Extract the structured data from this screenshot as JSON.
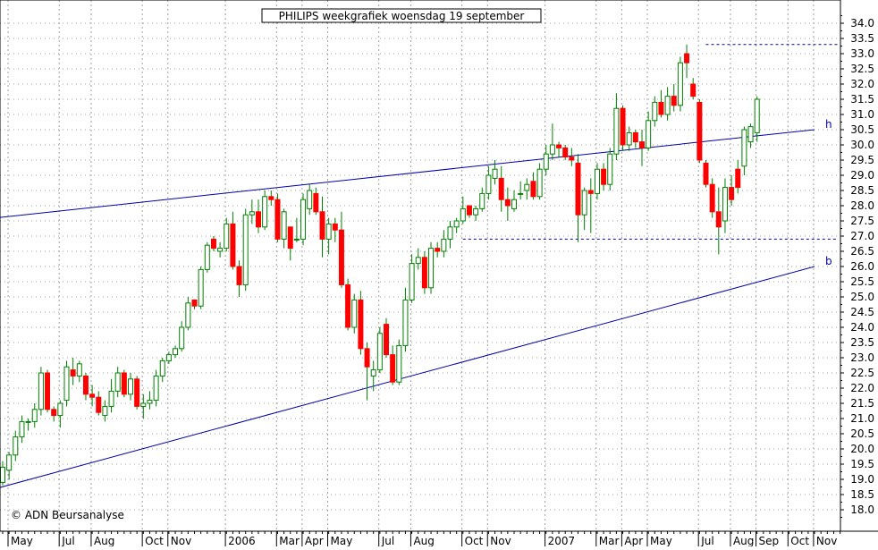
{
  "chart_data": {
    "type": "candlestick",
    "title": "PHILIPS weekgrafiek woensdag 19 september",
    "copyright": "© ADN Beursanalyse",
    "ylim": [
      17.5,
      35.0
    ],
    "yticks": [
      18.0,
      18.5,
      19.0,
      19.5,
      20.0,
      20.5,
      21.0,
      21.5,
      22.0,
      22.5,
      23.0,
      23.5,
      24.0,
      24.5,
      25.0,
      25.5,
      26.0,
      26.5,
      27.0,
      27.5,
      28.0,
      28.5,
      29.0,
      29.5,
      30.0,
      30.5,
      31.0,
      31.5,
      32.0,
      32.5,
      33.0,
      33.5,
      34.0
    ],
    "xticks": [
      {
        "label": "May",
        "week": 0
      },
      {
        "label": "Jul",
        "week": 8
      },
      {
        "label": "Aug",
        "week": 13
      },
      {
        "label": "Oct",
        "week": 21
      },
      {
        "label": "Nov",
        "week": 25
      },
      {
        "label": "2006",
        "week": 34
      },
      {
        "label": "Mar",
        "week": 42
      },
      {
        "label": "Apr",
        "week": 46
      },
      {
        "label": "May",
        "week": 50
      },
      {
        "label": "Jul",
        "week": 58
      },
      {
        "label": "Aug",
        "week": 63
      },
      {
        "label": "Oct",
        "week": 71
      },
      {
        "label": "Nov",
        "week": 75
      },
      {
        "label": "2007",
        "week": 84
      },
      {
        "label": "Mar",
        "week": 92
      },
      {
        "label": "Apr",
        "week": 96
      },
      {
        "label": "May",
        "week": 100
      },
      {
        "label": "Jul",
        "week": 108
      },
      {
        "label": "Aug",
        "week": 113
      },
      {
        "label": "Sep",
        "week": 117
      },
      {
        "label": "Oct",
        "week": 122
      },
      {
        "label": "Nov",
        "week": 126
      }
    ],
    "candles": [
      {
        "o": 18.9,
        "h": 19.6,
        "l": 18.8,
        "c": 19.4
      },
      {
        "o": 19.3,
        "h": 19.9,
        "l": 19.0,
        "c": 19.8
      },
      {
        "o": 19.8,
        "h": 20.6,
        "l": 19.6,
        "c": 20.4
      },
      {
        "o": 20.4,
        "h": 21.1,
        "l": 20.2,
        "c": 20.9
      },
      {
        "o": 20.9,
        "h": 21.0,
        "l": 20.6,
        "c": 20.9
      },
      {
        "o": 20.9,
        "h": 21.5,
        "l": 20.7,
        "c": 21.3
      },
      {
        "o": 21.3,
        "h": 22.7,
        "l": 21.1,
        "c": 22.5
      },
      {
        "o": 22.5,
        "h": 22.6,
        "l": 21.2,
        "c": 21.3
      },
      {
        "o": 21.3,
        "h": 21.4,
        "l": 20.9,
        "c": 21.1
      },
      {
        "o": 21.1,
        "h": 21.6,
        "l": 20.7,
        "c": 21.5
      },
      {
        "o": 21.6,
        "h": 22.9,
        "l": 21.4,
        "c": 22.7
      },
      {
        "o": 22.6,
        "h": 23.0,
        "l": 22.1,
        "c": 22.4
      },
      {
        "o": 22.4,
        "h": 22.9,
        "l": 22.2,
        "c": 22.8
      },
      {
        "o": 22.4,
        "h": 22.5,
        "l": 21.6,
        "c": 21.8
      },
      {
        "o": 21.8,
        "h": 22.1,
        "l": 21.4,
        "c": 21.7
      },
      {
        "o": 21.7,
        "h": 21.9,
        "l": 21.1,
        "c": 21.2
      },
      {
        "o": 21.1,
        "h": 21.6,
        "l": 20.9,
        "c": 21.4
      },
      {
        "o": 21.4,
        "h": 22.3,
        "l": 21.2,
        "c": 21.9
      },
      {
        "o": 21.9,
        "h": 22.7,
        "l": 21.7,
        "c": 22.5
      },
      {
        "o": 22.5,
        "h": 22.6,
        "l": 21.7,
        "c": 21.8
      },
      {
        "o": 21.8,
        "h": 22.5,
        "l": 21.6,
        "c": 22.3
      },
      {
        "o": 22.3,
        "h": 22.4,
        "l": 21.3,
        "c": 21.4
      },
      {
        "o": 21.4,
        "h": 21.8,
        "l": 21.0,
        "c": 21.5
      },
      {
        "o": 21.5,
        "h": 21.9,
        "l": 21.3,
        "c": 21.6
      },
      {
        "o": 21.6,
        "h": 22.6,
        "l": 21.4,
        "c": 22.4
      },
      {
        "o": 22.4,
        "h": 23.0,
        "l": 22.2,
        "c": 22.9
      },
      {
        "o": 22.9,
        "h": 23.2,
        "l": 22.8,
        "c": 23.1
      },
      {
        "o": 23.1,
        "h": 23.4,
        "l": 23.0,
        "c": 23.3
      },
      {
        "o": 23.3,
        "h": 24.2,
        "l": 23.2,
        "c": 24.0
      },
      {
        "o": 24.0,
        "h": 25.0,
        "l": 23.9,
        "c": 24.8
      },
      {
        "o": 24.9,
        "h": 24.9,
        "l": 24.6,
        "c": 24.7
      },
      {
        "o": 24.7,
        "h": 26.0,
        "l": 24.6,
        "c": 25.9
      },
      {
        "o": 25.9,
        "h": 26.8,
        "l": 25.8,
        "c": 26.7
      },
      {
        "o": 26.9,
        "h": 27.0,
        "l": 26.5,
        "c": 26.6
      },
      {
        "o": 26.5,
        "h": 26.8,
        "l": 26.3,
        "c": 26.6
      },
      {
        "o": 26.6,
        "h": 27.6,
        "l": 26.5,
        "c": 27.4
      },
      {
        "o": 27.4,
        "h": 27.8,
        "l": 25.9,
        "c": 26.0
      },
      {
        "o": 26.0,
        "h": 26.2,
        "l": 25.0,
        "c": 25.4
      },
      {
        "o": 25.4,
        "h": 27.9,
        "l": 25.2,
        "c": 27.7
      },
      {
        "o": 27.7,
        "h": 28.2,
        "l": 27.4,
        "c": 27.8
      },
      {
        "o": 27.8,
        "h": 28.2,
        "l": 27.1,
        "c": 27.3
      },
      {
        "o": 27.3,
        "h": 28.5,
        "l": 27.2,
        "c": 28.3
      },
      {
        "o": 28.3,
        "h": 28.5,
        "l": 28.0,
        "c": 28.2
      },
      {
        "o": 28.2,
        "h": 28.4,
        "l": 26.8,
        "c": 26.9
      },
      {
        "o": 26.9,
        "h": 27.9,
        "l": 26.6,
        "c": 27.8
      },
      {
        "o": 27.3,
        "h": 27.3,
        "l": 26.2,
        "c": 26.6
      },
      {
        "o": 26.9,
        "h": 27.6,
        "l": 26.8,
        "c": 26.9
      },
      {
        "o": 26.9,
        "h": 28.4,
        "l": 26.7,
        "c": 28.2
      },
      {
        "o": 27.9,
        "h": 28.7,
        "l": 27.7,
        "c": 28.5
      },
      {
        "o": 28.4,
        "h": 28.6,
        "l": 27.7,
        "c": 27.8
      },
      {
        "o": 27.8,
        "h": 28.3,
        "l": 26.3,
        "c": 26.9
      },
      {
        "o": 26.9,
        "h": 27.6,
        "l": 26.4,
        "c": 27.4
      },
      {
        "o": 27.4,
        "h": 27.6,
        "l": 26.8,
        "c": 27.2
      },
      {
        "o": 27.2,
        "h": 27.8,
        "l": 25.3,
        "c": 25.4
      },
      {
        "o": 25.4,
        "h": 25.6,
        "l": 23.9,
        "c": 24.0
      },
      {
        "o": 24.0,
        "h": 25.1,
        "l": 23.8,
        "c": 24.9
      },
      {
        "o": 24.9,
        "h": 25.2,
        "l": 23.1,
        "c": 23.3
      },
      {
        "o": 23.3,
        "h": 23.5,
        "l": 21.6,
        "c": 22.7
      },
      {
        "o": 22.4,
        "h": 22.9,
        "l": 21.9,
        "c": 22.6
      },
      {
        "o": 22.6,
        "h": 24.0,
        "l": 22.5,
        "c": 23.8
      },
      {
        "o": 24.1,
        "h": 24.3,
        "l": 23.0,
        "c": 23.1
      },
      {
        "o": 23.1,
        "h": 23.4,
        "l": 22.1,
        "c": 22.2
      },
      {
        "o": 22.2,
        "h": 23.6,
        "l": 22.1,
        "c": 23.4
      },
      {
        "o": 23.4,
        "h": 25.3,
        "l": 23.2,
        "c": 24.9
      },
      {
        "o": 24.9,
        "h": 26.4,
        "l": 24.8,
        "c": 26.1
      },
      {
        "o": 26.1,
        "h": 26.6,
        "l": 25.9,
        "c": 26.3
      },
      {
        "o": 26.3,
        "h": 26.5,
        "l": 25.1,
        "c": 25.3
      },
      {
        "o": 25.3,
        "h": 26.8,
        "l": 25.1,
        "c": 26.6
      },
      {
        "o": 26.6,
        "h": 26.8,
        "l": 26.3,
        "c": 26.5
      },
      {
        "o": 26.5,
        "h": 27.2,
        "l": 26.3,
        "c": 26.9
      },
      {
        "o": 26.9,
        "h": 27.5,
        "l": 26.6,
        "c": 27.3
      },
      {
        "o": 27.3,
        "h": 27.6,
        "l": 27.1,
        "c": 27.5
      },
      {
        "o": 27.5,
        "h": 28.3,
        "l": 27.4,
        "c": 27.9
      },
      {
        "o": 28.0,
        "h": 28.0,
        "l": 27.6,
        "c": 27.7
      },
      {
        "o": 27.7,
        "h": 28.0,
        "l": 27.5,
        "c": 27.9
      },
      {
        "o": 27.9,
        "h": 28.6,
        "l": 27.8,
        "c": 28.4
      },
      {
        "o": 28.4,
        "h": 29.3,
        "l": 28.2,
        "c": 29.0
      },
      {
        "o": 28.9,
        "h": 29.5,
        "l": 28.7,
        "c": 29.2
      },
      {
        "o": 28.9,
        "h": 29.3,
        "l": 27.8,
        "c": 28.2
      },
      {
        "o": 28.2,
        "h": 28.6,
        "l": 27.5,
        "c": 28.0
      },
      {
        "o": 27.9,
        "h": 28.5,
        "l": 27.8,
        "c": 28.2
      },
      {
        "o": 28.4,
        "h": 28.8,
        "l": 28.2,
        "c": 28.4
      },
      {
        "o": 28.5,
        "h": 28.9,
        "l": 28.2,
        "c": 28.7
      },
      {
        "o": 28.8,
        "h": 29.1,
        "l": 28.2,
        "c": 28.3
      },
      {
        "o": 28.3,
        "h": 29.4,
        "l": 28.2,
        "c": 29.2
      },
      {
        "o": 29.2,
        "h": 30.0,
        "l": 29.0,
        "c": 29.7
      },
      {
        "o": 29.7,
        "h": 30.7,
        "l": 29.5,
        "c": 30.0
      },
      {
        "o": 30.0,
        "h": 30.1,
        "l": 29.6,
        "c": 29.9
      },
      {
        "o": 29.9,
        "h": 30.0,
        "l": 29.5,
        "c": 29.6
      },
      {
        "o": 29.6,
        "h": 29.9,
        "l": 29.3,
        "c": 29.5
      },
      {
        "o": 29.4,
        "h": 29.7,
        "l": 26.8,
        "c": 27.7
      },
      {
        "o": 27.7,
        "h": 28.6,
        "l": 27.2,
        "c": 28.5
      },
      {
        "o": 28.5,
        "h": 28.9,
        "l": 27.1,
        "c": 28.4
      },
      {
        "o": 28.4,
        "h": 29.4,
        "l": 28.2,
        "c": 29.2
      },
      {
        "o": 29.2,
        "h": 29.4,
        "l": 28.5,
        "c": 28.7
      },
      {
        "o": 28.7,
        "h": 29.9,
        "l": 28.5,
        "c": 29.7
      },
      {
        "o": 29.7,
        "h": 31.7,
        "l": 29.5,
        "c": 31.2
      },
      {
        "o": 31.2,
        "h": 31.3,
        "l": 29.8,
        "c": 30.0
      },
      {
        "o": 30.0,
        "h": 30.6,
        "l": 29.8,
        "c": 30.4
      },
      {
        "o": 30.4,
        "h": 30.5,
        "l": 29.9,
        "c": 30.1
      },
      {
        "o": 30.1,
        "h": 30.5,
        "l": 29.3,
        "c": 29.9
      },
      {
        "o": 29.9,
        "h": 31.1,
        "l": 29.8,
        "c": 30.8
      },
      {
        "o": 30.8,
        "h": 31.6,
        "l": 30.6,
        "c": 31.4
      },
      {
        "o": 31.4,
        "h": 31.8,
        "l": 30.9,
        "c": 31.0
      },
      {
        "o": 31.0,
        "h": 31.9,
        "l": 30.8,
        "c": 31.6
      },
      {
        "o": 31.6,
        "h": 32.0,
        "l": 31.1,
        "c": 31.3
      },
      {
        "o": 31.3,
        "h": 32.9,
        "l": 31.1,
        "c": 32.7
      },
      {
        "o": 33.0,
        "h": 33.3,
        "l": 32.2,
        "c": 32.7
      },
      {
        "o": 32.0,
        "h": 32.2,
        "l": 31.5,
        "c": 31.6
      },
      {
        "o": 31.4,
        "h": 31.5,
        "l": 29.4,
        "c": 29.5
      },
      {
        "o": 29.4,
        "h": 29.5,
        "l": 28.6,
        "c": 28.7
      },
      {
        "o": 28.7,
        "h": 28.9,
        "l": 27.6,
        "c": 27.8
      },
      {
        "o": 27.8,
        "h": 28.6,
        "l": 26.4,
        "c": 27.3
      },
      {
        "o": 27.5,
        "h": 28.9,
        "l": 27.1,
        "c": 28.6
      },
      {
        "o": 28.6,
        "h": 29.0,
        "l": 28.0,
        "c": 28.2
      },
      {
        "o": 29.2,
        "h": 29.5,
        "l": 28.4,
        "c": 28.6
      },
      {
        "o": 29.3,
        "h": 30.6,
        "l": 29.0,
        "c": 30.5
      },
      {
        "o": 30.1,
        "h": 30.7,
        "l": 29.9,
        "c": 30.6
      },
      {
        "o": 30.4,
        "h": 31.6,
        "l": 30.1,
        "c": 31.5
      }
    ],
    "trendlines": [
      {
        "name": "h",
        "points": [
          [
            -1,
            27.6
          ],
          [
            127,
            30.5
          ]
        ]
      },
      {
        "name": "b",
        "points": [
          [
            -1,
            18.7
          ],
          [
            127,
            26.0
          ]
        ]
      }
    ],
    "support_resistance": [
      {
        "price": 33.3,
        "from_week": 110,
        "to_week": 134
      },
      {
        "price": 26.9,
        "from_week": 72,
        "to_week": 131
      }
    ],
    "colors": {
      "up": "#ffffff",
      "down": "#ff0000",
      "wick": "#008000",
      "trend": "#0000aa",
      "grid": "#a0a0a0"
    },
    "grid": true
  }
}
